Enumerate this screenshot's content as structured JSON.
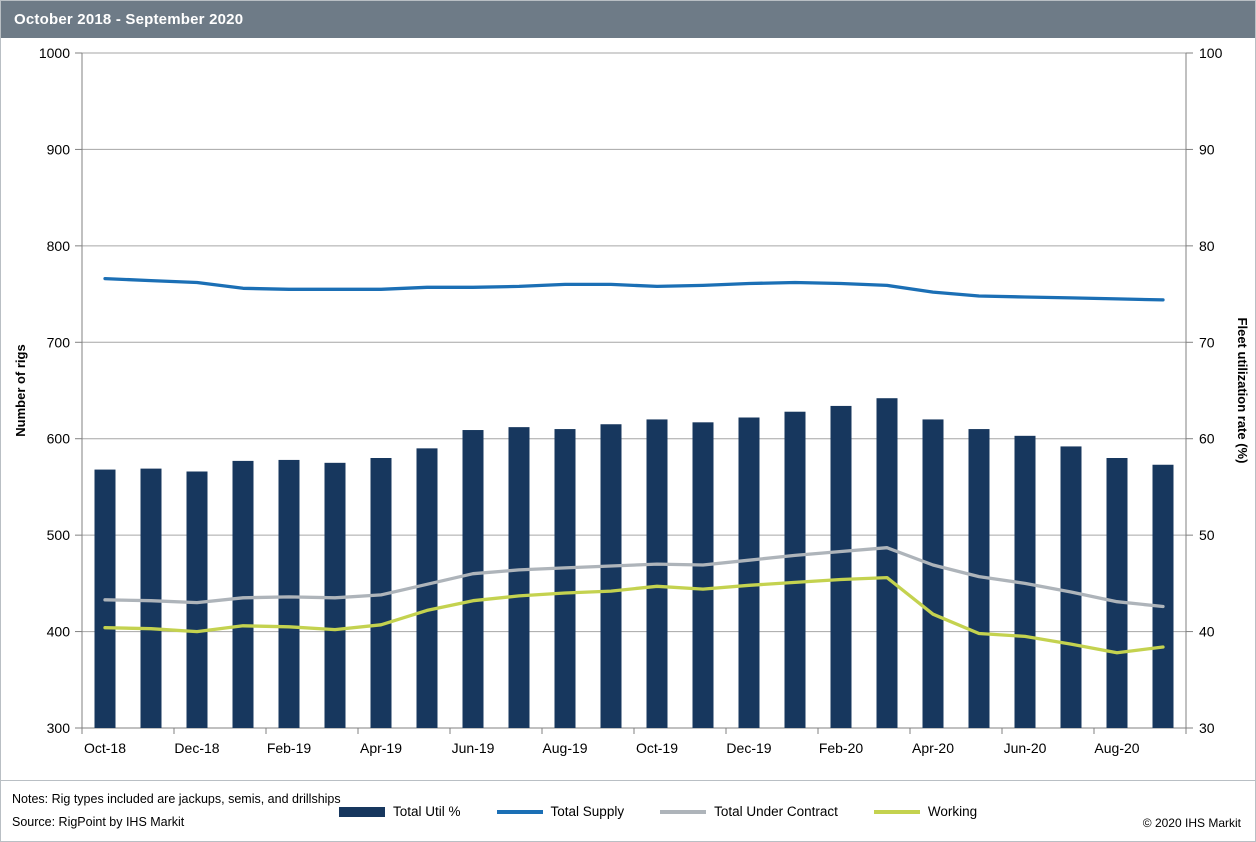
{
  "header": {
    "title": "October 2018 - September 2020"
  },
  "footer": {
    "notes_line1": "Notes: Rig types included are jackups, semis, and drillships",
    "notes_line2": "Source: RigPoint by IHS Markit",
    "copyright": "© 2020 IHS Markit"
  },
  "colors": {
    "header_bar": "#6e7b87",
    "bar_fill": "#17375e",
    "supply_line": "#1b6fb5",
    "contract_line": "#aeb4ba",
    "working_line": "#c4d24f",
    "gridline": "#a6a6a6",
    "axis_line": "#808080"
  },
  "chart_data": {
    "type": "bar",
    "subtype": "combo-bar-lines",
    "title": "October 2018 - September 2020",
    "x": [
      "Oct-18",
      "Nov-18",
      "Dec-18",
      "Jan-19",
      "Feb-19",
      "Mar-19",
      "Apr-19",
      "May-19",
      "Jun-19",
      "Jul-19",
      "Aug-19",
      "Sep-19",
      "Oct-19",
      "Nov-19",
      "Dec-19",
      "Jan-20",
      "Feb-20",
      "Mar-20",
      "Apr-20",
      "May-20",
      "Jun-20",
      "Jul-20",
      "Aug-20",
      "Sep-20"
    ],
    "x_tick_labels": [
      "Oct-18",
      "Dec-18",
      "Feb-19",
      "Apr-19",
      "Jun-19",
      "Aug-19",
      "Oct-19",
      "Dec-19",
      "Feb-20",
      "Apr-20",
      "Jun-20",
      "Aug-20"
    ],
    "left_axis": {
      "label": "Number of rigs",
      "min": 300,
      "max": 1000,
      "step": 100
    },
    "right_axis": {
      "label": "Fleet utilization rate (%)",
      "min": 30,
      "max": 100,
      "step": 10
    },
    "grid": true,
    "legend_position": "bottom",
    "series": [
      {
        "name": "Total Util %",
        "type": "bar",
        "axis": "right",
        "color": "#17375e",
        "values": [
          56.8,
          56.9,
          56.6,
          57.7,
          57.8,
          57.5,
          58.0,
          59.0,
          60.9,
          61.2,
          61.0,
          61.5,
          62.0,
          61.7,
          62.2,
          62.8,
          63.4,
          64.2,
          62.0,
          61.0,
          60.3,
          59.2,
          58.0,
          57.3
        ]
      },
      {
        "name": "Total Supply",
        "type": "line",
        "axis": "left",
        "color": "#1b6fb5",
        "values": [
          766,
          764,
          762,
          756,
          755,
          755,
          755,
          757,
          757,
          758,
          760,
          760,
          758,
          759,
          761,
          762,
          761,
          759,
          752,
          748,
          747,
          746,
          745,
          744
        ]
      },
      {
        "name": "Total Under Contract",
        "type": "line",
        "axis": "left",
        "color": "#aeb4ba",
        "values": [
          433,
          432,
          430,
          435,
          436,
          435,
          438,
          449,
          460,
          464,
          466,
          468,
          470,
          469,
          474,
          479,
          483,
          487,
          469,
          457,
          450,
          441,
          431,
          426
        ]
      },
      {
        "name": "Working",
        "type": "line",
        "axis": "left",
        "color": "#c4d24f",
        "values": [
          404,
          403,
          400,
          406,
          405,
          402,
          407,
          422,
          432,
          437,
          440,
          442,
          447,
          444,
          448,
          451,
          454,
          456,
          418,
          398,
          395,
          387,
          378,
          384
        ]
      }
    ]
  }
}
